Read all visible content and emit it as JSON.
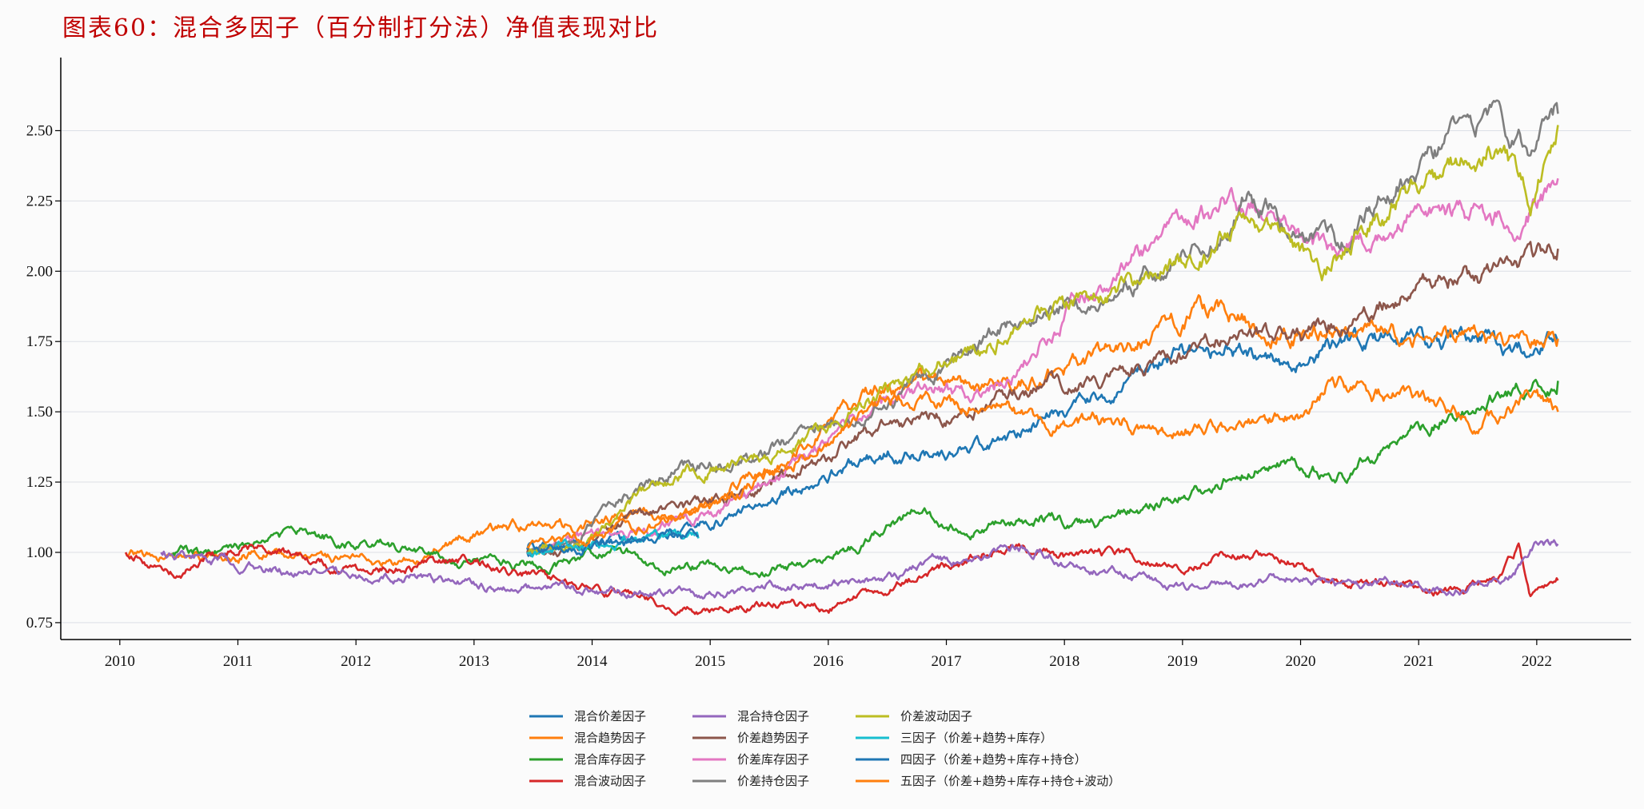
{
  "chart_data": {
    "type": "line",
    "title": "图表60：混合多因子（百分制打分法）净值表现对比",
    "xlabel": "",
    "ylabel": "",
    "xlim": [
      2009.5,
      2022.8
    ],
    "ylim": [
      0.69,
      2.76
    ],
    "x_ticks": [
      "2010",
      "2011",
      "2012",
      "2013",
      "2014",
      "2015",
      "2016",
      "2017",
      "2018",
      "2019",
      "2020",
      "2021",
      "2022"
    ],
    "y_ticks": [
      "0.75",
      "1.00",
      "1.25",
      "1.50",
      "1.75",
      "2.00",
      "2.25",
      "2.50"
    ],
    "grid": "horizontal",
    "legend_position": "bottom-center",
    "series": [
      {
        "name": "混合价差因子",
        "color": "#1f77b4",
        "start": 2013.45,
        "seed": 11,
        "points": [
          [
            2013.45,
            1.0
          ],
          [
            2014.0,
            1.02
          ],
          [
            2014.6,
            1.06
          ],
          [
            2015.0,
            1.1
          ],
          [
            2015.5,
            1.18
          ],
          [
            2016.0,
            1.28
          ],
          [
            2016.5,
            1.36
          ],
          [
            2017.0,
            1.35
          ],
          [
            2017.5,
            1.4
          ],
          [
            2017.8,
            1.47
          ],
          [
            2018.3,
            1.55
          ],
          [
            2018.9,
            1.7
          ],
          [
            2019.4,
            1.72
          ],
          [
            2019.9,
            1.65
          ],
          [
            2020.3,
            1.74
          ],
          [
            2020.8,
            1.75
          ],
          [
            2021.3,
            1.76
          ],
          [
            2021.8,
            1.72
          ],
          [
            2022.18,
            1.75
          ]
        ]
      },
      {
        "name": "混合趋势因子",
        "color": "#ff7f0e",
        "start": 2010.05,
        "seed": 23,
        "points": [
          [
            2010.05,
            1.0
          ],
          [
            2010.6,
            0.97
          ],
          [
            2011.2,
            1.0
          ],
          [
            2011.8,
            0.98
          ],
          [
            2012.3,
            0.96
          ],
          [
            2012.6,
            0.98
          ],
          [
            2012.9,
            1.06
          ],
          [
            2013.4,
            1.09
          ],
          [
            2013.9,
            1.09
          ],
          [
            2014.3,
            1.13
          ],
          [
            2014.8,
            1.14
          ],
          [
            2015.3,
            1.25
          ],
          [
            2015.8,
            1.4
          ],
          [
            2016.3,
            1.55
          ],
          [
            2016.8,
            1.6
          ],
          [
            2017.3,
            1.58
          ],
          [
            2017.8,
            1.62
          ],
          [
            2018.3,
            1.7
          ],
          [
            2018.8,
            1.78
          ],
          [
            2019.3,
            1.87
          ],
          [
            2019.9,
            1.77
          ],
          [
            2020.4,
            1.78
          ],
          [
            2021.0,
            1.76
          ],
          [
            2021.6,
            1.75
          ],
          [
            2022.18,
            1.76
          ]
        ]
      },
      {
        "name": "混合库存因子",
        "color": "#2ca02c",
        "start": 2010.45,
        "seed": 37,
        "points": [
          [
            2010.45,
            1.0
          ],
          [
            2010.8,
            1.0
          ],
          [
            2011.2,
            1.05
          ],
          [
            2011.6,
            1.07
          ],
          [
            2012.0,
            1.03
          ],
          [
            2012.5,
            1.02
          ],
          [
            2012.8,
            0.95
          ],
          [
            2013.3,
            0.96
          ],
          [
            2013.8,
            0.96
          ],
          [
            2014.2,
            1.02
          ],
          [
            2014.6,
            0.94
          ],
          [
            2015.0,
            0.96
          ],
          [
            2015.5,
            0.93
          ],
          [
            2016.0,
            0.98
          ],
          [
            2016.3,
            1.03
          ],
          [
            2016.7,
            1.14
          ],
          [
            2017.2,
            1.08
          ],
          [
            2017.8,
            1.13
          ],
          [
            2018.3,
            1.1
          ],
          [
            2018.8,
            1.18
          ],
          [
            2019.3,
            1.25
          ],
          [
            2019.7,
            1.33
          ],
          [
            2020.1,
            1.3
          ],
          [
            2020.4,
            1.28
          ],
          [
            2020.9,
            1.43
          ],
          [
            2021.3,
            1.5
          ],
          [
            2021.8,
            1.57
          ],
          [
            2022.18,
            1.61
          ]
        ]
      },
      {
        "name": "混合波动因子",
        "color": "#d62728",
        "start": 2010.05,
        "seed": 41,
        "points": [
          [
            2010.05,
            1.0
          ],
          [
            2010.5,
            0.93
          ],
          [
            2011.0,
            1.02
          ],
          [
            2011.5,
            0.98
          ],
          [
            2012.0,
            0.93
          ],
          [
            2012.5,
            0.95
          ],
          [
            2013.0,
            0.97
          ],
          [
            2013.5,
            0.92
          ],
          [
            2014.0,
            0.86
          ],
          [
            2014.5,
            0.83
          ],
          [
            2015.0,
            0.79
          ],
          [
            2015.5,
            0.82
          ],
          [
            2016.0,
            0.8
          ],
          [
            2016.5,
            0.88
          ],
          [
            2017.0,
            0.95
          ],
          [
            2017.6,
            1.03
          ],
          [
            2018.0,
            0.99
          ],
          [
            2018.6,
            0.98
          ],
          [
            2019.0,
            0.96
          ],
          [
            2019.6,
            1.0
          ],
          [
            2020.0,
            0.96
          ],
          [
            2020.3,
            0.89
          ],
          [
            2020.8,
            0.89
          ],
          [
            2021.3,
            0.86
          ],
          [
            2021.7,
            0.9
          ],
          [
            2021.85,
            1.02
          ],
          [
            2021.95,
            0.84
          ],
          [
            2022.18,
            0.9
          ]
        ]
      },
      {
        "name": "混合持仓因子",
        "color": "#9467bd",
        "start": 2010.35,
        "seed": 53,
        "points": [
          [
            2010.35,
            1.0
          ],
          [
            2011.0,
            0.96
          ],
          [
            2011.5,
            0.93
          ],
          [
            2012.0,
            0.92
          ],
          [
            2012.5,
            0.91
          ],
          [
            2013.0,
            0.88
          ],
          [
            2013.5,
            0.87
          ],
          [
            2014.0,
            0.86
          ],
          [
            2014.5,
            0.86
          ],
          [
            2015.0,
            0.85
          ],
          [
            2015.5,
            0.88
          ],
          [
            2016.0,
            0.89
          ],
          [
            2016.5,
            0.9
          ],
          [
            2016.9,
            0.97
          ],
          [
            2017.3,
            0.99
          ],
          [
            2017.7,
            1.02
          ],
          [
            2018.2,
            0.94
          ],
          [
            2018.7,
            0.92
          ],
          [
            2019.1,
            0.87
          ],
          [
            2019.6,
            0.9
          ],
          [
            2020.0,
            0.92
          ],
          [
            2020.3,
            0.88
          ],
          [
            2020.8,
            0.9
          ],
          [
            2021.3,
            0.86
          ],
          [
            2021.8,
            0.92
          ],
          [
            2022.0,
            1.04
          ],
          [
            2022.18,
            1.03
          ]
        ]
      },
      {
        "name": "价差趋势因子",
        "color": "#8c564b",
        "start": 2013.45,
        "seed": 61,
        "points": [
          [
            2013.45,
            1.0
          ],
          [
            2013.8,
            1.0
          ],
          [
            2014.3,
            1.12
          ],
          [
            2014.8,
            1.15
          ],
          [
            2015.3,
            1.2
          ],
          [
            2015.8,
            1.3
          ],
          [
            2016.3,
            1.42
          ],
          [
            2016.8,
            1.5
          ],
          [
            2017.2,
            1.5
          ],
          [
            2017.6,
            1.58
          ],
          [
            2018.0,
            1.6
          ],
          [
            2018.5,
            1.65
          ],
          [
            2019.0,
            1.68
          ],
          [
            2019.5,
            1.8
          ],
          [
            2020.0,
            1.75
          ],
          [
            2020.3,
            1.82
          ],
          [
            2020.8,
            1.9
          ],
          [
            2021.3,
            1.98
          ],
          [
            2021.8,
            1.98
          ],
          [
            2022.18,
            2.08
          ]
        ]
      },
      {
        "name": "价差库存因子",
        "color": "#e377c2",
        "start": 2013.45,
        "seed": 67,
        "points": [
          [
            2013.45,
            1.0
          ],
          [
            2013.9,
            1.05
          ],
          [
            2014.5,
            1.08
          ],
          [
            2015.0,
            1.12
          ],
          [
            2015.5,
            1.25
          ],
          [
            2016.0,
            1.4
          ],
          [
            2016.5,
            1.55
          ],
          [
            2016.8,
            1.6
          ],
          [
            2017.3,
            1.55
          ],
          [
            2017.7,
            1.68
          ],
          [
            2018.0,
            1.85
          ],
          [
            2018.5,
            2.02
          ],
          [
            2019.0,
            2.15
          ],
          [
            2019.4,
            2.25
          ],
          [
            2019.8,
            2.15
          ],
          [
            2020.1,
            2.08
          ],
          [
            2020.5,
            2.1
          ],
          [
            2021.0,
            2.2
          ],
          [
            2021.5,
            2.2
          ],
          [
            2021.9,
            2.18
          ],
          [
            2022.18,
            2.33
          ]
        ]
      },
      {
        "name": "价差持仓因子",
        "color": "#7f7f7f",
        "start": 2013.45,
        "seed": 71,
        "points": [
          [
            2013.45,
            1.0
          ],
          [
            2013.9,
            1.05
          ],
          [
            2014.3,
            1.2
          ],
          [
            2014.8,
            1.3
          ],
          [
            2015.3,
            1.33
          ],
          [
            2015.8,
            1.42
          ],
          [
            2016.3,
            1.5
          ],
          [
            2016.8,
            1.62
          ],
          [
            2017.3,
            1.75
          ],
          [
            2017.8,
            1.85
          ],
          [
            2018.3,
            1.92
          ],
          [
            2018.8,
            2.02
          ],
          [
            2019.2,
            2.08
          ],
          [
            2019.55,
            2.28
          ],
          [
            2019.9,
            2.15
          ],
          [
            2020.3,
            2.1
          ],
          [
            2020.7,
            2.28
          ],
          [
            2021.2,
            2.42
          ],
          [
            2021.6,
            2.58
          ],
          [
            2021.85,
            2.48
          ],
          [
            2021.95,
            2.35
          ],
          [
            2022.18,
            2.56
          ]
        ]
      },
      {
        "name": "价差波动因子",
        "color": "#bcbd22",
        "start": 2013.45,
        "seed": 79,
        "points": [
          [
            2013.45,
            1.0
          ],
          [
            2013.9,
            1.04
          ],
          [
            2014.3,
            1.18
          ],
          [
            2014.8,
            1.28
          ],
          [
            2015.3,
            1.32
          ],
          [
            2015.8,
            1.4
          ],
          [
            2016.3,
            1.52
          ],
          [
            2016.8,
            1.65
          ],
          [
            2017.3,
            1.72
          ],
          [
            2017.8,
            1.85
          ],
          [
            2018.3,
            1.9
          ],
          [
            2018.8,
            2.0
          ],
          [
            2019.2,
            2.05
          ],
          [
            2019.55,
            2.2
          ],
          [
            2019.9,
            2.1
          ],
          [
            2020.2,
            2.0
          ],
          [
            2020.6,
            2.18
          ],
          [
            2021.1,
            2.3
          ],
          [
            2021.6,
            2.45
          ],
          [
            2021.85,
            2.32
          ],
          [
            2021.95,
            2.22
          ],
          [
            2022.18,
            2.52
          ]
        ]
      },
      {
        "name": "三因子（价差+趋势+库存）",
        "color": "#17becf",
        "start": 2013.45,
        "seed": 83,
        "points": [
          [
            2013.45,
            1.0
          ],
          [
            2014.0,
            1.03
          ],
          [
            2014.5,
            1.05
          ],
          [
            2014.9,
            1.05
          ]
        ]
      },
      {
        "name": "四因子（价差+趋势+库存+持仓）",
        "color": "#1f77b4",
        "start": 2013.45,
        "seed": 89,
        "points": [
          [
            2013.45,
            1.01
          ],
          [
            2013.9,
            1.02
          ],
          [
            2014.4,
            1.04
          ],
          [
            2014.9,
            1.06
          ]
        ]
      },
      {
        "name": "五因子（价差+趋势+库存+持仓+波动）",
        "color": "#ff7f0e",
        "start": 2013.45,
        "seed": 97,
        "points": [
          [
            2013.45,
            1.02
          ],
          [
            2014.0,
            1.05
          ],
          [
            2014.5,
            1.1
          ],
          [
            2015.0,
            1.15
          ],
          [
            2015.5,
            1.28
          ],
          [
            2016.0,
            1.4
          ],
          [
            2016.5,
            1.55
          ],
          [
            2017.0,
            1.52
          ],
          [
            2017.5,
            1.5
          ],
          [
            2018.0,
            1.45
          ],
          [
            2018.5,
            1.47
          ],
          [
            2019.0,
            1.43
          ],
          [
            2019.5,
            1.48
          ],
          [
            2020.0,
            1.47
          ],
          [
            2020.25,
            1.6
          ],
          [
            2020.6,
            1.56
          ],
          [
            2021.1,
            1.55
          ],
          [
            2021.5,
            1.45
          ],
          [
            2021.9,
            1.55
          ],
          [
            2022.18,
            1.5
          ]
        ]
      }
    ]
  }
}
